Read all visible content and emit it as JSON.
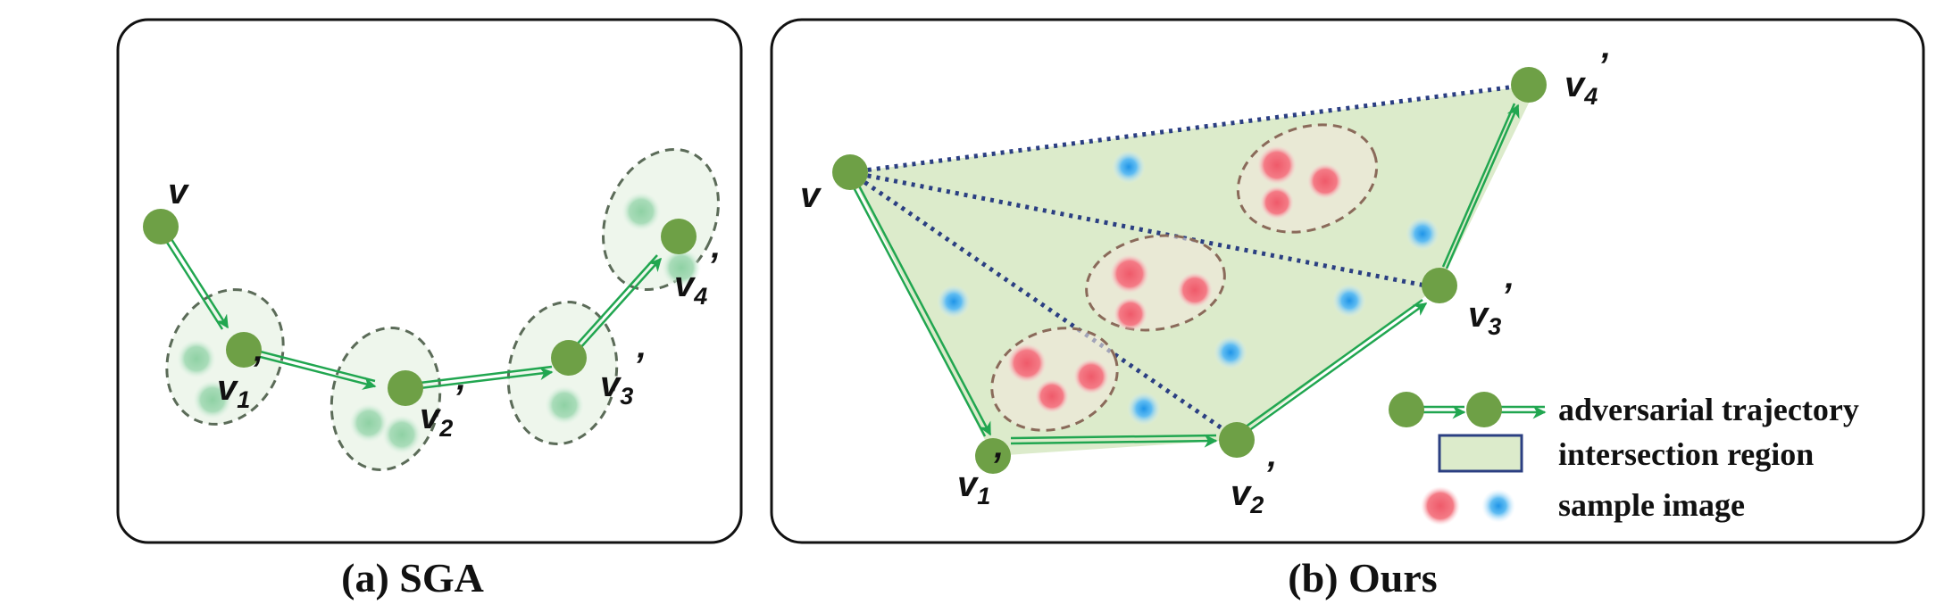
{
  "panels": [
    {
      "id": "a",
      "caption": "(a) SGA"
    },
    {
      "id": "b",
      "caption": "(b) Ours"
    }
  ],
  "panel_a": {
    "nodes": [
      {
        "id": "v",
        "label": "v",
        "prime": ""
      },
      {
        "id": "v1",
        "label": "v",
        "sub": "1",
        "prime": "’"
      },
      {
        "id": "v2",
        "label": "v",
        "sub": "2",
        "prime": "’"
      },
      {
        "id": "v3",
        "label": "v",
        "sub": "3",
        "prime": "’"
      },
      {
        "id": "v4",
        "label": "v",
        "sub": "4",
        "prime": "’"
      }
    ]
  },
  "panel_b": {
    "nodes": [
      {
        "id": "v",
        "label": "v",
        "prime": ""
      },
      {
        "id": "v1",
        "label": "v",
        "sub": "1",
        "prime": "’"
      },
      {
        "id": "v2",
        "label": "v",
        "sub": "2",
        "prime": "’"
      },
      {
        "id": "v3",
        "label": "v",
        "sub": "3",
        "prime": "’"
      },
      {
        "id": "v4",
        "label": "v",
        "sub": "4",
        "prime": "’"
      }
    ]
  },
  "legend": {
    "items": [
      {
        "icon": "trajectory-icon",
        "label": "adversarial trajectory"
      },
      {
        "icon": "region-swatch-icon",
        "label": "intersection region"
      },
      {
        "icon": "sample-dots-icon",
        "label": "sample image"
      }
    ]
  },
  "colors": {
    "node": "#6ea046",
    "arrow": "#21a650",
    "region_fill": "#dcebcb",
    "dotted_line": "#2b3f82",
    "sample_red": "#f06a78",
    "sample_blue": "#3aa8ee",
    "sample_green": "#9fd9b1",
    "frame": "#111111"
  }
}
